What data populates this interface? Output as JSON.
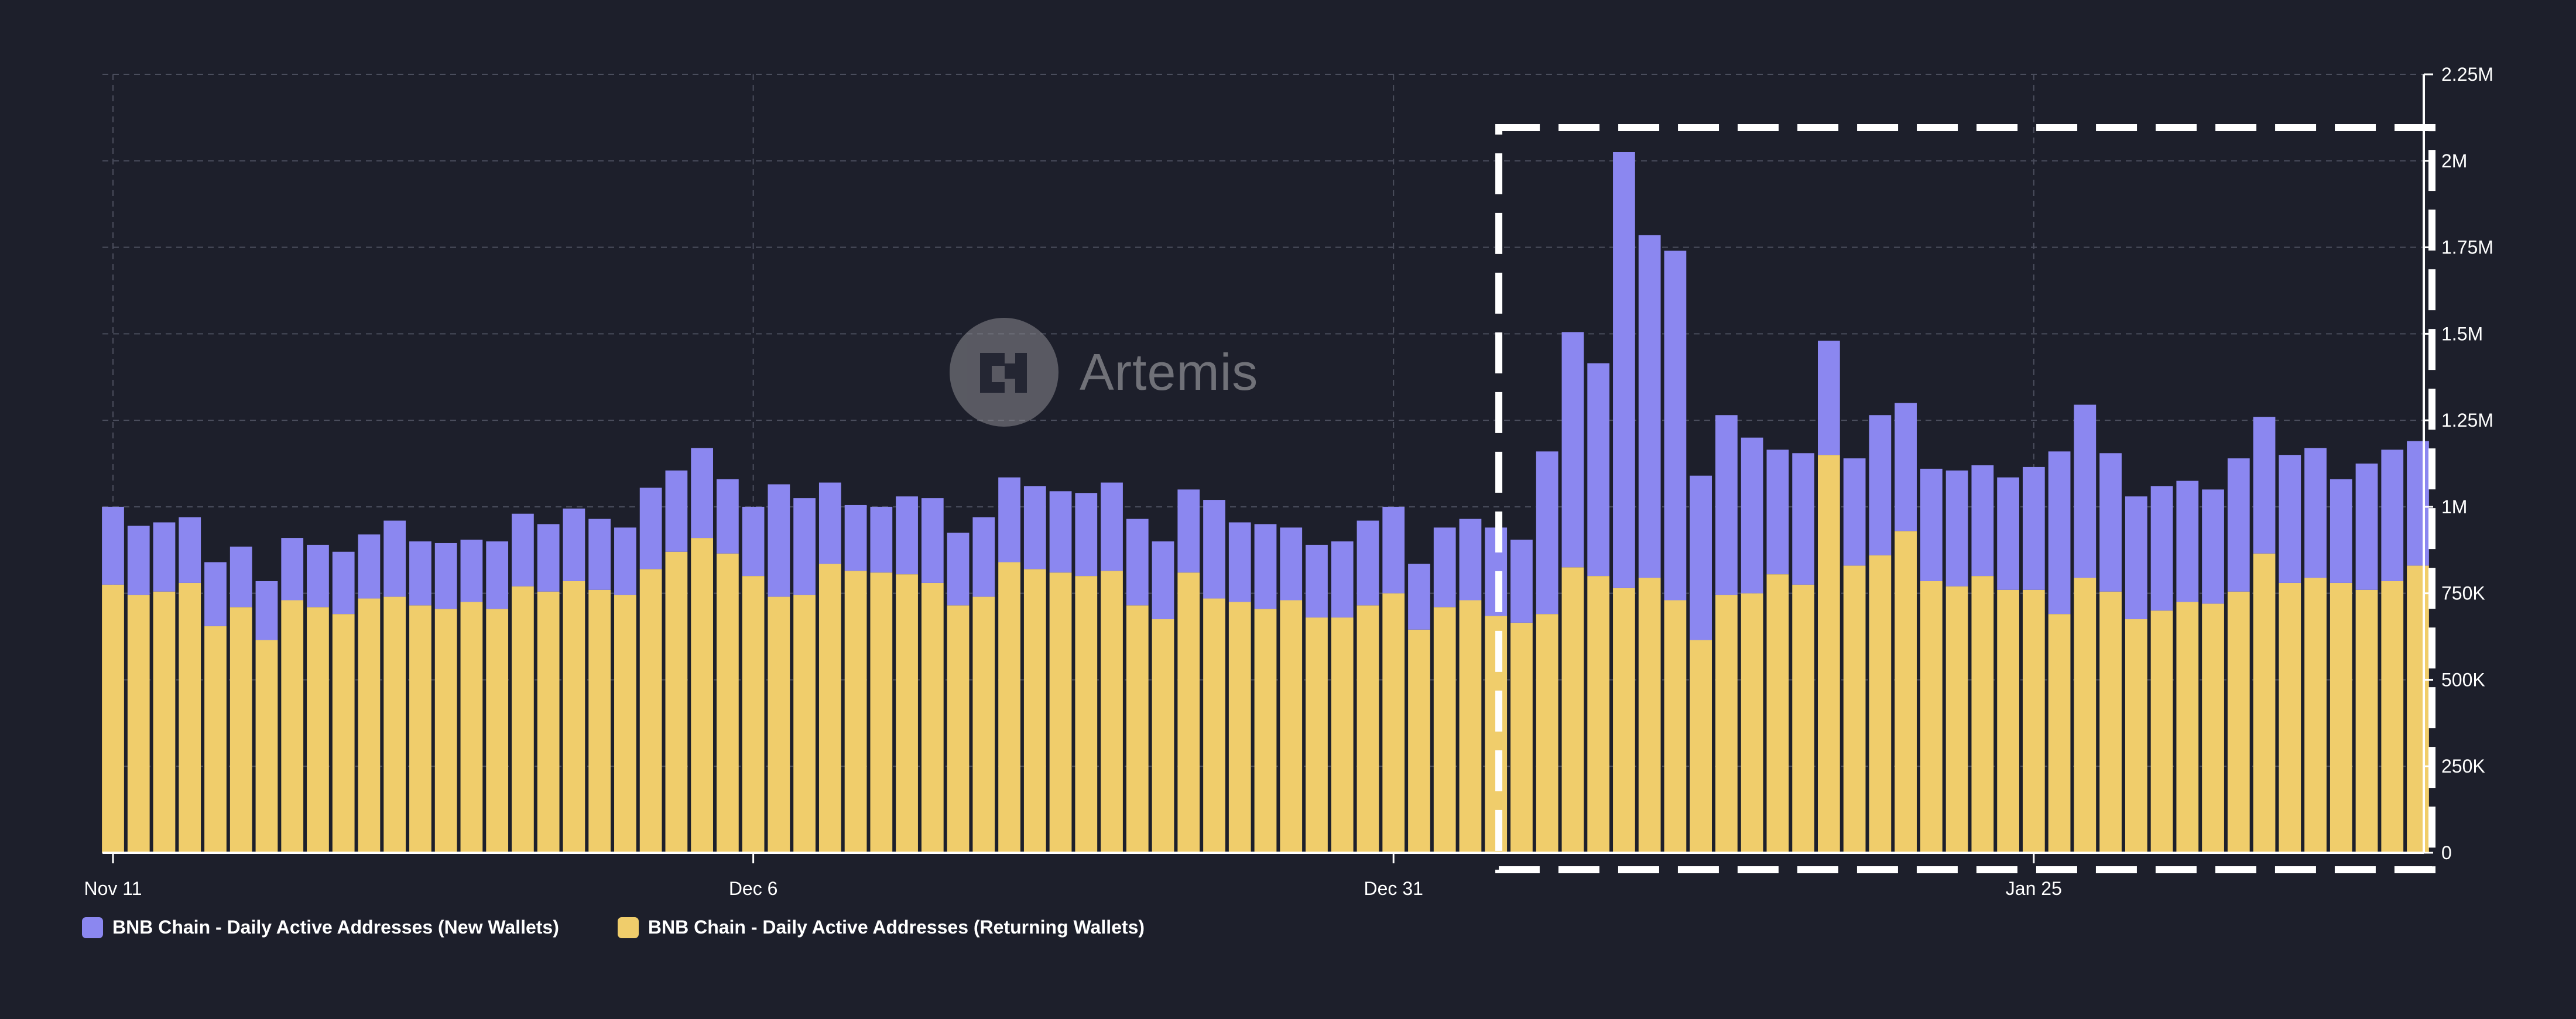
{
  "watermark": {
    "text": "Artemis"
  },
  "colors": {
    "background": "#1d1f2b",
    "new_wallets": "#8b87f0",
    "returning_wallets": "#f0cd6b",
    "grid": "#4a4d5c",
    "text": "#ffffff",
    "highlight_box": "#ffffff"
  },
  "chart_data": {
    "type": "bar",
    "stacked": true,
    "title": "",
    "xlabel": "",
    "ylabel": "",
    "ylim": [
      0,
      2250000
    ],
    "y_ticks": [
      {
        "value": 0,
        "label": "0"
      },
      {
        "value": 250000,
        "label": "250K"
      },
      {
        "value": 500000,
        "label": "500K"
      },
      {
        "value": 750000,
        "label": "750K"
      },
      {
        "value": 1000000,
        "label": "1M"
      },
      {
        "value": 1250000,
        "label": "1.25M"
      },
      {
        "value": 1500000,
        "label": "1.5M"
      },
      {
        "value": 1750000,
        "label": "1.75M"
      },
      {
        "value": 2000000,
        "label": "2M"
      },
      {
        "value": 2250000,
        "label": "2.25M"
      }
    ],
    "x_ticks": [
      {
        "index": 0,
        "label": "Nov 11"
      },
      {
        "index": 25,
        "label": "Dec 6"
      },
      {
        "index": 50,
        "label": "Dec 31"
      },
      {
        "index": 75,
        "label": "Jan 25"
      }
    ],
    "grid": true,
    "legend_position": "bottom-left",
    "highlight": {
      "from_index": 55,
      "to_index": 91,
      "style": "dashed-box"
    },
    "series": [
      {
        "name": "BNB Chain - Daily Active Addresses (Returning Wallets)",
        "values": [
          775000,
          745000,
          755000,
          780000,
          655000,
          710000,
          615000,
          730000,
          710000,
          690000,
          735000,
          740000,
          715000,
          705000,
          725000,
          705000,
          770000,
          755000,
          785000,
          760000,
          745000,
          820000,
          870000,
          910000,
          865000,
          800000,
          740000,
          745000,
          835000,
          815000,
          810000,
          805000,
          780000,
          715000,
          740000,
          840000,
          820000,
          810000,
          800000,
          815000,
          715000,
          675000,
          810000,
          735000,
          725000,
          705000,
          730000,
          680000,
          680000,
          715000,
          750000,
          645000,
          710000,
          730000,
          685000,
          665000,
          690000,
          825000,
          800000,
          765000,
          795000,
          730000,
          615000,
          745000,
          750000,
          805000,
          775000,
          1150000,
          830000,
          860000,
          930000,
          785000,
          770000,
          800000,
          760000,
          760000,
          690000,
          795000,
          755000,
          675000,
          700000,
          725000,
          720000,
          755000,
          865000,
          780000,
          795000,
          780000,
          760000,
          785000,
          830000
        ]
      },
      {
        "name": "BNB Chain - Daily Active Addresses (New Wallets)",
        "values": [
          225000,
          200000,
          200000,
          190000,
          185000,
          175000,
          170000,
          180000,
          180000,
          180000,
          185000,
          220000,
          185000,
          190000,
          180000,
          195000,
          210000,
          195000,
          210000,
          205000,
          195000,
          235000,
          235000,
          260000,
          215000,
          200000,
          325000,
          280000,
          235000,
          190000,
          190000,
          225000,
          245000,
          210000,
          230000,
          245000,
          240000,
          235000,
          240000,
          255000,
          250000,
          225000,
          240000,
          285000,
          230000,
          245000,
          210000,
          210000,
          220000,
          245000,
          250000,
          190000,
          230000,
          235000,
          255000,
          240000,
          470000,
          680000,
          615000,
          1260000,
          990000,
          1010000,
          475000,
          520000,
          450000,
          360000,
          380000,
          330000,
          310000,
          405000,
          370000,
          325000,
          335000,
          320000,
          325000,
          355000,
          470000,
          500000,
          400000,
          355000,
          360000,
          350000,
          330000,
          385000,
          395000,
          370000,
          375000,
          300000,
          365000,
          380000,
          360000
        ]
      }
    ]
  }
}
